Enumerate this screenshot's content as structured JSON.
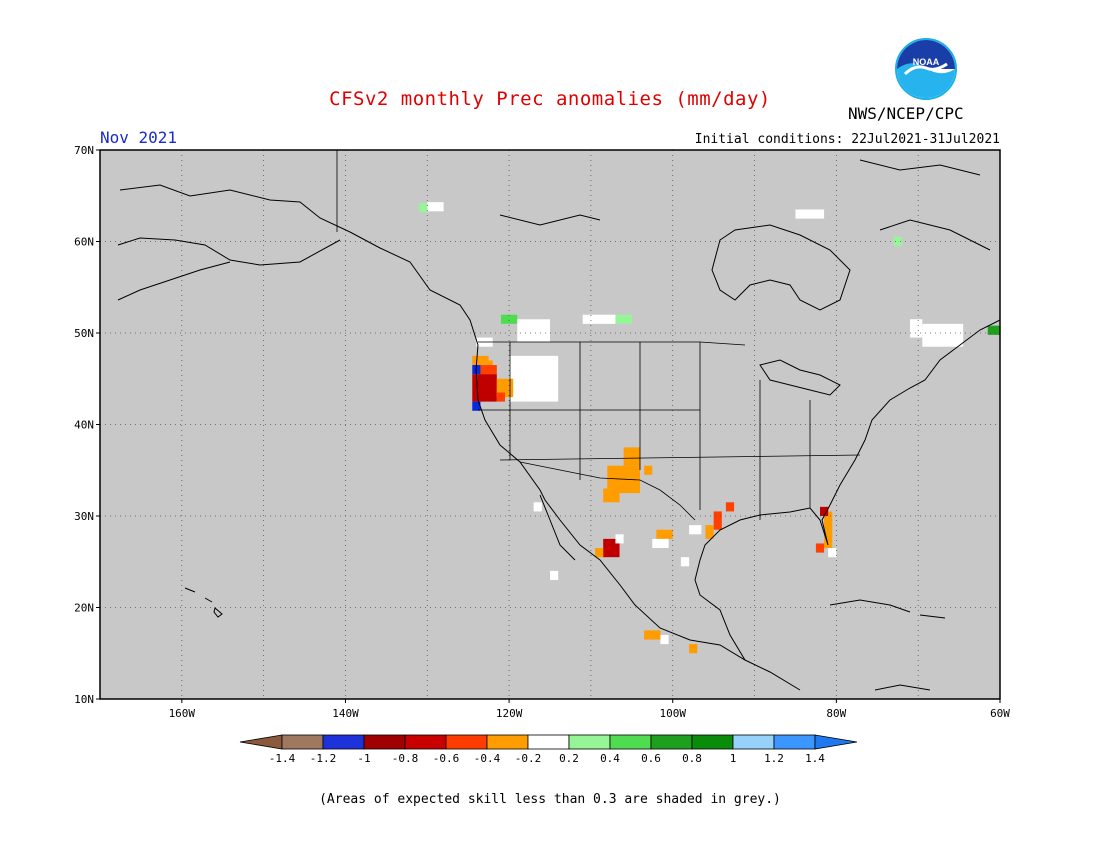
{
  "header": {
    "title": "CFSv2 monthly Prec anomalies (mm/day)",
    "month": "Nov 2021",
    "initial_conditions": "Initial conditions: 22Jul2021-31Jul2021",
    "agency": "NWS/NCEP/CPC",
    "logo_text": "NOAA"
  },
  "map": {
    "projection": "lat-lon",
    "lon_range": [
      -170,
      -60
    ],
    "lat_range": [
      10,
      70
    ],
    "grid": "dotted",
    "lat_ticks": [
      "70N",
      "60N",
      "50N",
      "40N",
      "30N",
      "20N",
      "10N"
    ],
    "lon_ticks": [
      "160W",
      "140W",
      "120W",
      "100W",
      "80W",
      "60W"
    ],
    "background_color": "#c8c8c8",
    "anomaly_cells": [
      {
        "lon": -130,
        "lat": 64.3,
        "w": 2,
        "h": 1,
        "color": "#ffffff"
      },
      {
        "lon": -131,
        "lat": 64.2,
        "w": 1,
        "h": 1,
        "color": "#96f596"
      },
      {
        "lon": -85,
        "lat": 63.5,
        "w": 3.5,
        "h": 1,
        "color": "#ffffff"
      },
      {
        "lon": -73,
        "lat": 60.5,
        "w": 1,
        "h": 1,
        "color": "#96f596"
      },
      {
        "lon": -121,
        "lat": 52.0,
        "w": 2,
        "h": 1,
        "color": "#50dc50"
      },
      {
        "lon": -119,
        "lat": 51.5,
        "w": 4,
        "h": 2.5,
        "color": "#ffffff"
      },
      {
        "lon": -111,
        "lat": 52.0,
        "w": 4,
        "h": 1,
        "color": "#ffffff"
      },
      {
        "lon": -107,
        "lat": 52.0,
        "w": 2,
        "h": 1,
        "color": "#96f596"
      },
      {
        "lon": -124,
        "lat": 49.5,
        "w": 2,
        "h": 1,
        "color": "#ffffff"
      },
      {
        "lon": -120,
        "lat": 47.5,
        "w": 6,
        "h": 5,
        "color": "#ffffff"
      },
      {
        "lon": -124.5,
        "lat": 47.5,
        "w": 2,
        "h": 1,
        "color": "#ff9c00"
      },
      {
        "lon": -123,
        "lat": 47.0,
        "w": 1,
        "h": 2,
        "color": "#ff9c00"
      },
      {
        "lon": -124.5,
        "lat": 46.5,
        "w": 1,
        "h": 1,
        "color": "#0a28dc"
      },
      {
        "lon": -123.5,
        "lat": 46.5,
        "w": 2,
        "h": 1,
        "color": "#ff4000"
      },
      {
        "lon": -124.5,
        "lat": 45.5,
        "w": 3,
        "h": 3,
        "color": "#c00000"
      },
      {
        "lon": -121.5,
        "lat": 45.0,
        "w": 2,
        "h": 2,
        "color": "#ff9c00"
      },
      {
        "lon": -124.5,
        "lat": 42.5,
        "w": 1,
        "h": 1,
        "color": "#0a28dc"
      },
      {
        "lon": -121.5,
        "lat": 43.5,
        "w": 1,
        "h": 1,
        "color": "#ff4000"
      },
      {
        "lon": -108,
        "lat": 35.5,
        "w": 4,
        "h": 3,
        "color": "#ff9c00"
      },
      {
        "lon": -106,
        "lat": 37.5,
        "w": 2,
        "h": 2,
        "color": "#ff9c00"
      },
      {
        "lon": -103.5,
        "lat": 35.5,
        "w": 1,
        "h": 1,
        "color": "#ff9c00"
      },
      {
        "lon": -108.5,
        "lat": 33.0,
        "w": 2,
        "h": 1.5,
        "color": "#ff9c00"
      },
      {
        "lon": -108.5,
        "lat": 27.5,
        "w": 2,
        "h": 2,
        "color": "#c00000"
      },
      {
        "lon": -109.5,
        "lat": 26.5,
        "w": 1,
        "h": 1,
        "color": "#ff9c00"
      },
      {
        "lon": -107,
        "lat": 28.0,
        "w": 1,
        "h": 1,
        "color": "#ffffff"
      },
      {
        "lon": -102,
        "lat": 28.5,
        "w": 2,
        "h": 1,
        "color": "#ff9c00"
      },
      {
        "lon": -102.5,
        "lat": 27.5,
        "w": 2,
        "h": 1,
        "color": "#ffffff"
      },
      {
        "lon": -99,
        "lat": 25.5,
        "w": 1,
        "h": 1,
        "color": "#ffffff"
      },
      {
        "lon": -98,
        "lat": 29.0,
        "w": 1.5,
        "h": 1,
        "color": "#ffffff"
      },
      {
        "lon": -95,
        "lat": 30.5,
        "w": 1,
        "h": 2,
        "color": "#ff4000"
      },
      {
        "lon": -96,
        "lat": 29.0,
        "w": 1,
        "h": 1.5,
        "color": "#ff9c00"
      },
      {
        "lon": -93.5,
        "lat": 31.5,
        "w": 1,
        "h": 1,
        "color": "#ff4000"
      },
      {
        "lon": -81.5,
        "lat": 30.5,
        "w": 1,
        "h": 4,
        "color": "#ff9c00"
      },
      {
        "lon": -82,
        "lat": 31.0,
        "w": 1,
        "h": 1,
        "color": "#c00000"
      },
      {
        "lon": -82.5,
        "lat": 27.0,
        "w": 1,
        "h": 1,
        "color": "#ff4000"
      },
      {
        "lon": -81,
        "lat": 26.5,
        "w": 1,
        "h": 1,
        "color": "#ffffff"
      },
      {
        "lon": -117,
        "lat": 31.5,
        "w": 1,
        "h": 1,
        "color": "#ffffff"
      },
      {
        "lon": -115,
        "lat": 24.0,
        "w": 1,
        "h": 1,
        "color": "#ffffff"
      },
      {
        "lon": -103.5,
        "lat": 17.5,
        "w": 2,
        "h": 1,
        "color": "#ff9c00"
      },
      {
        "lon": -101.5,
        "lat": 17.0,
        "w": 1,
        "h": 1,
        "color": "#ffffff"
      },
      {
        "lon": -98,
        "lat": 16.0,
        "w": 1,
        "h": 1,
        "color": "#ff9c00"
      },
      {
        "lon": -71,
        "lat": 51.5,
        "w": 1.5,
        "h": 2,
        "color": "#ffffff"
      },
      {
        "lon": -69.5,
        "lat": 51.0,
        "w": 5,
        "h": 2.5,
        "color": "#ffffff"
      },
      {
        "lon": -61.5,
        "lat": 50.8,
        "w": 1.5,
        "h": 1,
        "color": "#1ea01e"
      }
    ]
  },
  "colorbar": {
    "labels": [
      "-1.4",
      "-1.2",
      "-1",
      "-0.8",
      "-0.6",
      "-0.4",
      "-0.2",
      "0.2",
      "0.4",
      "0.6",
      "0.8",
      "1",
      "1.2",
      "1.4"
    ],
    "colors": [
      "#8b5a3c",
      "#a07860",
      "#1e32dc",
      "#a00000",
      "#c80000",
      "#ff3c00",
      "#ff9c00",
      "#ffffff",
      "#96f596",
      "#50dc50",
      "#1ea01e",
      "#0a8c0a",
      "#96d2fa",
      "#3c96ff",
      "#1e78f0"
    ]
  },
  "footnote": "(Areas of expected skill less than 0.3 are shaded in grey.)"
}
